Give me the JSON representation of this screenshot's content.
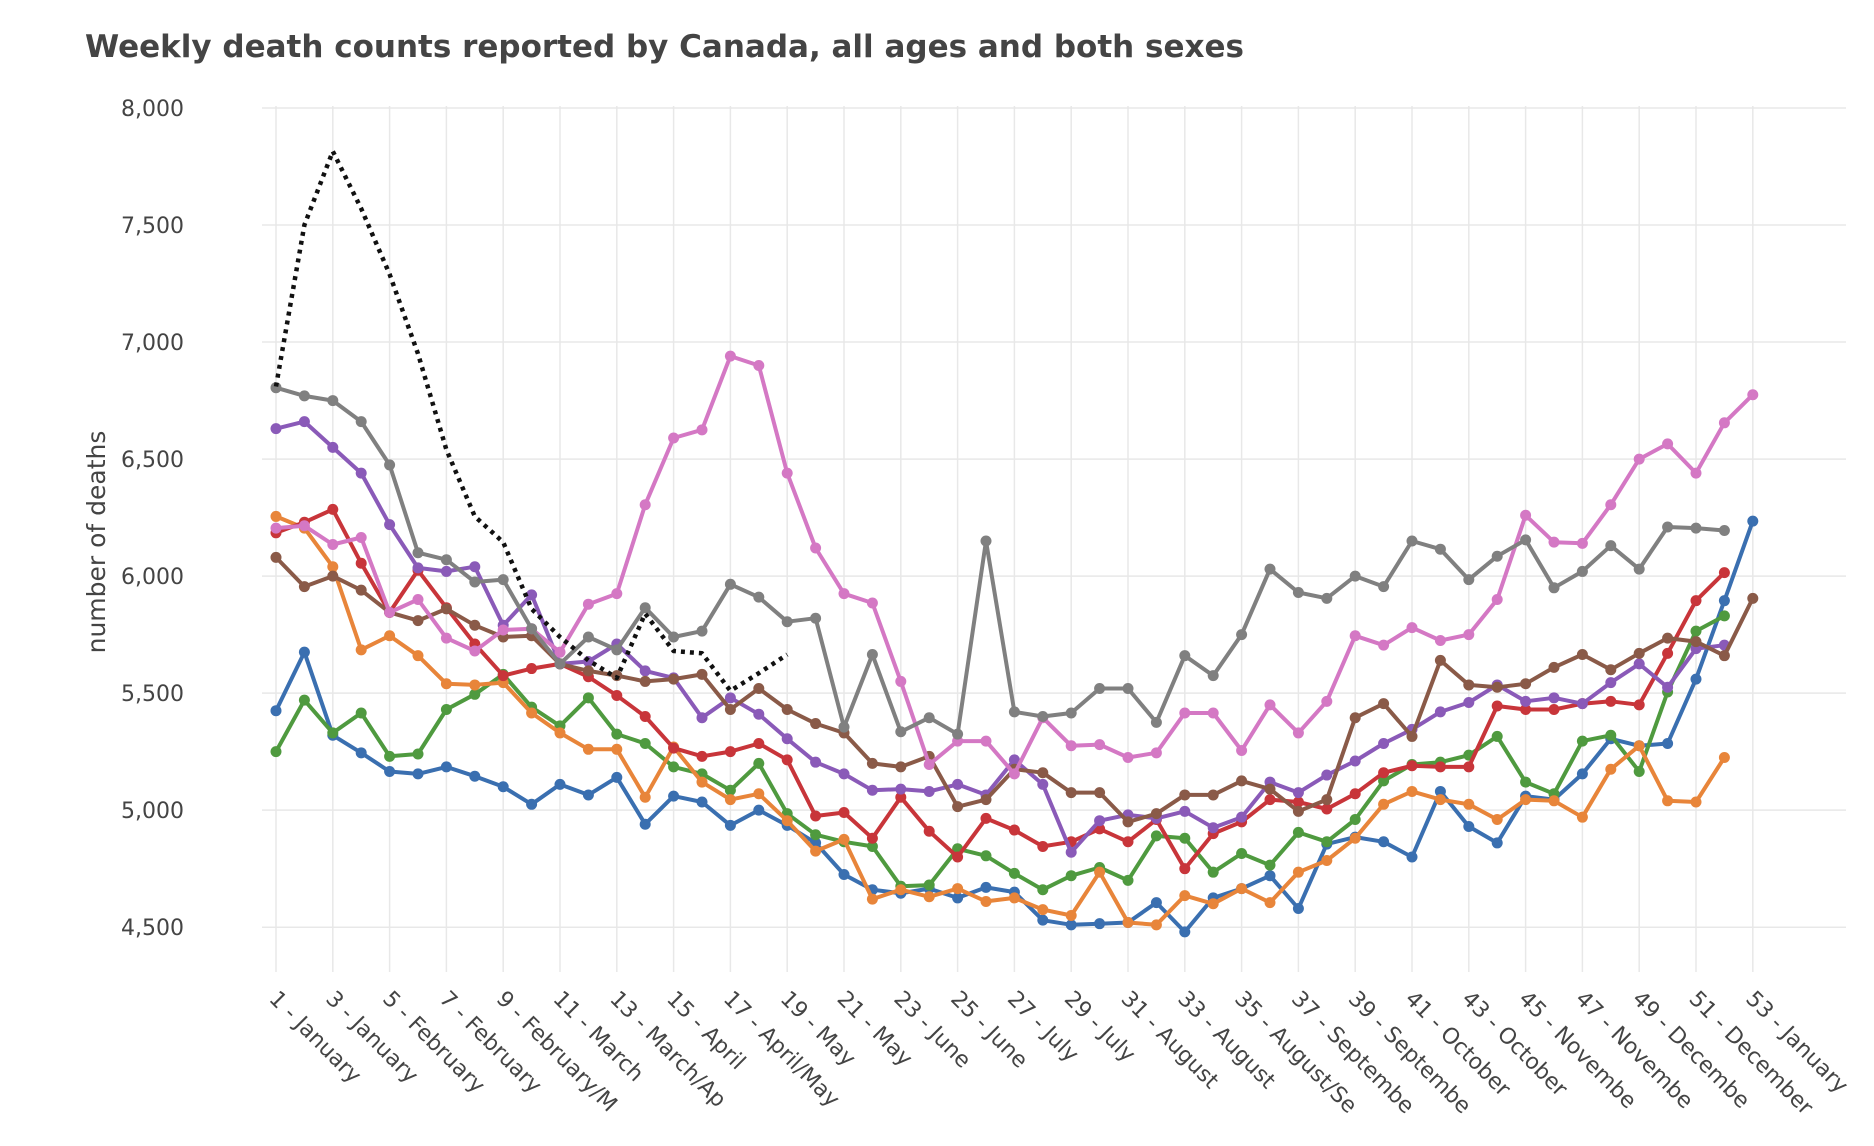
{
  "chart_data": {
    "type": "line",
    "title": "Weekly death counts reported by Canada, all ages and both sexes",
    "xlabel": "",
    "ylabel": "number of deaths",
    "ylim": [
      4300,
      8000
    ],
    "yticks": [
      4500,
      5000,
      5500,
      6000,
      6500,
      7000,
      7500,
      8000
    ],
    "ytick_labels": [
      "4,500",
      "5,000",
      "5,500",
      "6,000",
      "6,500",
      "7,000",
      "7,500",
      "8,000"
    ],
    "xlim": [
      0,
      56
    ],
    "xticks": [
      1,
      3,
      5,
      7,
      9,
      11,
      13,
      15,
      17,
      19,
      21,
      23,
      25,
      27,
      29,
      31,
      33,
      35,
      37,
      39,
      41,
      43,
      45,
      47,
      49,
      51,
      53
    ],
    "xtick_labels": [
      "1 - January",
      "3 - January",
      "5 - February",
      "7 - February",
      "9 - February/M",
      "11 - March",
      "13 - March/Ap",
      "15 - April",
      "17 - April/May",
      "19 - May",
      "21 - May",
      "23 - June",
      "25 - June",
      "27 - July",
      "29 - July",
      "31 - August",
      "33 - August",
      "35 - August/Se",
      "37 - Septembe",
      "39 - Septembe",
      "41 - October",
      "43 - October",
      "45 - Novembe",
      "47 - Novembe",
      "49 - Decembe",
      "51 - December",
      "53 - January"
    ],
    "grid": true,
    "legend": "none",
    "series": [
      {
        "color": "#3a6fb0",
        "markers": true,
        "values": [
          5425,
          5675,
          5320,
          5245,
          5165,
          5155,
          5185,
          5145,
          5100,
          5025,
          5110,
          5065,
          5140,
          4940,
          5060,
          5035,
          4935,
          5000,
          4935,
          4860,
          4725,
          4660,
          4645,
          4665,
          4625,
          4670,
          4650,
          4530,
          4510,
          4515,
          4520,
          4605,
          4480,
          4625,
          4665,
          4720,
          4580,
          4855,
          4885,
          4865,
          4800,
          5080,
          4930,
          4860,
          5060,
          5045,
          5155,
          5305,
          5275,
          5285,
          5560,
          5895,
          6235
        ]
      },
      {
        "color": "#4f9a3f",
        "markers": true,
        "values": [
          5250,
          5470,
          5330,
          5415,
          5230,
          5240,
          5430,
          5495,
          5580,
          5440,
          5360,
          5480,
          5325,
          5285,
          5185,
          5155,
          5085,
          5200,
          4985,
          4895,
          4865,
          4845,
          4675,
          4680,
          4835,
          4805,
          4730,
          4660,
          4720,
          4755,
          4700,
          4890,
          4880,
          4735,
          4815,
          4765,
          4905,
          4865,
          4960,
          5125,
          5195,
          5205,
          5235,
          5315,
          5120,
          5070,
          5295,
          5320,
          5165,
          5505,
          5765,
          5830
        ]
      },
      {
        "color": "#e8853a",
        "markers": true,
        "values": [
          6255,
          6205,
          6040,
          5685,
          5745,
          5660,
          5540,
          5535,
          5545,
          5415,
          5330,
          5260,
          5260,
          5055,
          5270,
          5120,
          5045,
          5070,
          4955,
          4825,
          4875,
          4620,
          4660,
          4630,
          4665,
          4610,
          4625,
          4575,
          4550,
          4735,
          4520,
          4510,
          4635,
          4600,
          4665,
          4605,
          4735,
          4785,
          4880,
          5025,
          5080,
          5045,
          5025,
          4960,
          5045,
          5040,
          4970,
          5175,
          5275,
          5040,
          5035,
          5225
        ]
      },
      {
        "color": "#c8353a",
        "markers": true,
        "values": [
          6185,
          6230,
          6285,
          6055,
          5845,
          6025,
          5865,
          5710,
          5575,
          5605,
          5625,
          5570,
          5490,
          5400,
          5265,
          5230,
          5250,
          5285,
          5215,
          4975,
          4990,
          4880,
          5055,
          4910,
          4800,
          4965,
          4915,
          4845,
          4865,
          4920,
          4865,
          4960,
          4750,
          4900,
          4950,
          5045,
          5035,
          5005,
          5070,
          5160,
          5190,
          5185,
          5185,
          5445,
          5430,
          5430,
          5455,
          5465,
          5450,
          5670,
          5895,
          6015
        ]
      },
      {
        "color": "#8a5ab8",
        "markers": true,
        "values": [
          6630,
          6660,
          6550,
          6440,
          6220,
          6035,
          6020,
          6040,
          5790,
          5920,
          5625,
          5635,
          5710,
          5595,
          5565,
          5395,
          5480,
          5410,
          5305,
          5205,
          5155,
          5085,
          5090,
          5080,
          5110,
          5065,
          5215,
          5110,
          4820,
          4955,
          4980,
          4965,
          4995,
          4925,
          4970,
          5120,
          5075,
          5150,
          5210,
          5285,
          5345,
          5420,
          5460,
          5535,
          5465,
          5480,
          5455,
          5545,
          5625,
          5525,
          5690,
          5705
        ]
      },
      {
        "color": "#8a5a48",
        "markers": true,
        "values": [
          6080,
          5955,
          6000,
          5940,
          5845,
          5810,
          5860,
          5790,
          5740,
          5745,
          5625,
          5595,
          5575,
          5550,
          5560,
          5580,
          5430,
          5520,
          5430,
          5370,
          5330,
          5200,
          5185,
          5230,
          5015,
          5045,
          5175,
          5160,
          5075,
          5075,
          4950,
          4985,
          5065,
          5065,
          5125,
          5090,
          4995,
          5045,
          5395,
          5455,
          5315,
          5640,
          5535,
          5525,
          5540,
          5610,
          5665,
          5600,
          5670,
          5735,
          5720,
          5660,
          5905
        ]
      },
      {
        "color": "#d478c4",
        "markers": true,
        "values": [
          6205,
          6215,
          6135,
          6165,
          5845,
          5900,
          5735,
          5680,
          5770,
          5775,
          5675,
          5880,
          5925,
          6305,
          6590,
          6625,
          6940,
          6900,
          6440,
          6120,
          5925,
          5885,
          5550,
          5195,
          5295,
          5295,
          5155,
          5395,
          5275,
          5280,
          5225,
          5245,
          5415,
          5415,
          5255,
          5450,
          5330,
          5465,
          5745,
          5705,
          5780,
          5725,
          5750,
          5900,
          6260,
          6145,
          6140,
          6305,
          6500,
          6565,
          6440,
          6655,
          6775
        ]
      },
      {
        "color": "#808080",
        "markers": true,
        "values": [
          6805,
          6770,
          6750,
          6660,
          6475,
          6100,
          6070,
          5975,
          5985,
          5775,
          5625,
          5740,
          5685,
          5865,
          5740,
          5765,
          5965,
          5910,
          5805,
          5820,
          5355,
          5665,
          5335,
          5395,
          5325,
          6150,
          5420,
          5400,
          5415,
          5520,
          5520,
          5375,
          5660,
          5575,
          5750,
          6030,
          5930,
          5905,
          6000,
          5955,
          6150,
          6115,
          5985,
          6085,
          6155,
          5950,
          6020,
          6130,
          6030,
          6210,
          6205,
          6195
        ]
      },
      {
        "color": "#111111",
        "markers": false,
        "dashed": true,
        "values": [
          6810,
          7500,
          7815,
          7570,
          7290,
          6950,
          6540,
          6255,
          6145,
          5860,
          5740,
          5640,
          5565,
          5840,
          5680,
          5670,
          5510,
          5585,
          5665
        ]
      }
    ]
  }
}
